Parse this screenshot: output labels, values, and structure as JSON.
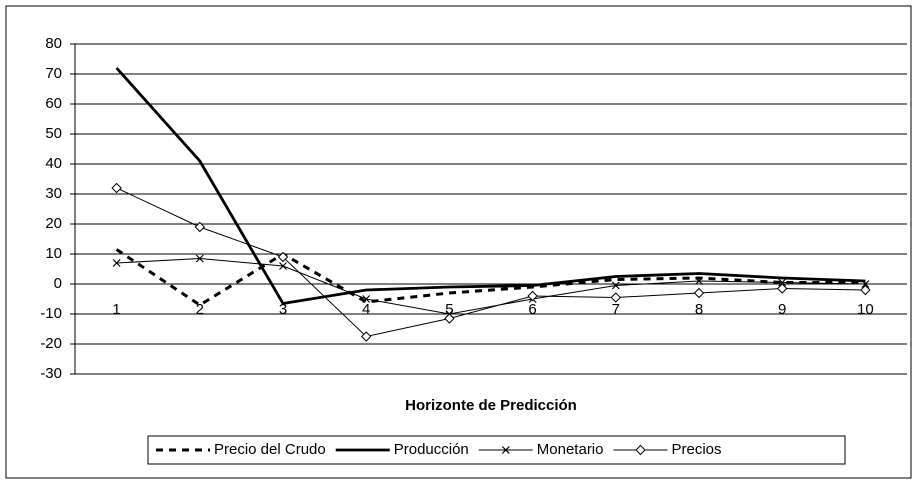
{
  "chart_data": {
    "type": "line",
    "xlabel": "Horizonte de Predicción",
    "categories": [
      "1",
      "2",
      "3",
      "4",
      "5",
      "6",
      "7",
      "8",
      "9",
      "10"
    ],
    "series": [
      {
        "name": "Precio del Crudo",
        "color": "#000000",
        "style": "dashed",
        "marker": "none",
        "values": [
          11.5,
          -7,
          10,
          -6,
          -3,
          -1,
          1.5,
          2,
          0.5,
          0.5
        ]
      },
      {
        "name": "Producción",
        "color": "#000000",
        "style": "thick",
        "marker": "none",
        "values": [
          72,
          41,
          -6.5,
          -2,
          -1,
          -0.5,
          2.5,
          3.5,
          2,
          1
        ]
      },
      {
        "name": "Monetario",
        "color": "#000000",
        "style": "thin",
        "marker": "x",
        "values": [
          7,
          8.5,
          6,
          -5,
          -10,
          -5,
          -0.5,
          1,
          0.5,
          0
        ]
      },
      {
        "name": "Precios",
        "color": "#000000",
        "style": "thin",
        "marker": "diamond",
        "values": [
          32,
          19,
          9,
          -17.5,
          -11.5,
          -4,
          -4.5,
          -3,
          -1.5,
          -2
        ]
      }
    ],
    "ylim": [
      -30,
      80
    ],
    "yticks": [
      -30,
      -20,
      -10,
      0,
      10,
      20,
      30,
      40,
      50,
      60,
      70,
      80
    ],
    "grid": true,
    "legend": "bottom"
  }
}
